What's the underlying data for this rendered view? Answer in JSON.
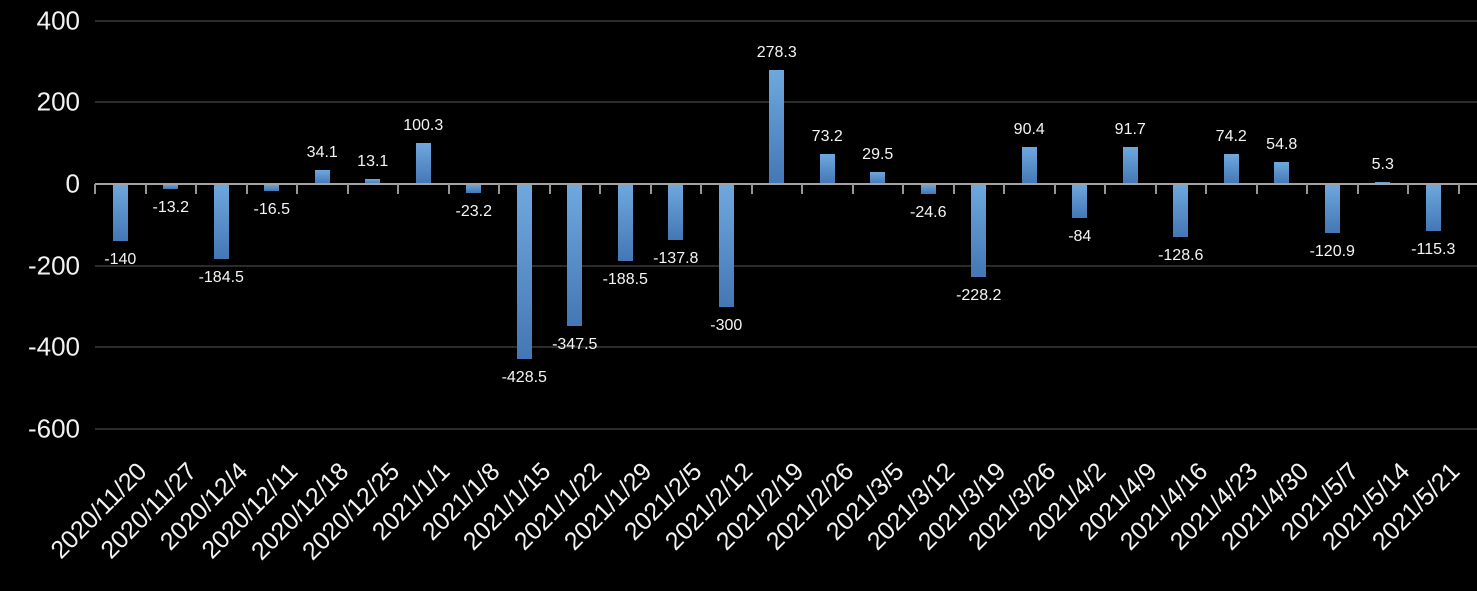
{
  "chart_data": {
    "type": "bar",
    "title": "",
    "xlabel": "",
    "ylabel": "",
    "categories": [
      "2020/11/20",
      "2020/11/27",
      "2020/12/4",
      "2020/12/11",
      "2020/12/18",
      "2020/12/25",
      "2021/1/1",
      "2021/1/8",
      "2021/1/15",
      "2021/1/22",
      "2021/1/29",
      "2021/2/5",
      "2021/2/12",
      "2021/2/19",
      "2021/2/26",
      "2021/3/5",
      "2021/3/12",
      "2021/3/19",
      "2021/3/26",
      "2021/4/2",
      "2021/4/9",
      "2021/4/16",
      "2021/4/23",
      "2021/4/30",
      "2021/5/7",
      "2021/5/14",
      "2021/5/21"
    ],
    "values": [
      -140,
      -13.2,
      -184.5,
      -16.5,
      34.1,
      13.1,
      100.3,
      -23.2,
      -428.5,
      -347.5,
      -188.5,
      -137.8,
      -300,
      278.3,
      73.2,
      29.5,
      -24.6,
      -228.2,
      90.4,
      -84,
      91.7,
      -128.6,
      74.2,
      54.8,
      -120.9,
      5.3,
      -115.3
    ],
    "yticks": [
      400,
      200,
      0,
      -200,
      -400,
      -600
    ],
    "ylim": [
      -600,
      400
    ],
    "grid": "horizontal",
    "legend": "none",
    "data_labels": "outside-end",
    "x_label_rotation_deg": 45,
    "colors": {
      "background": "#000000",
      "bar_gradient_top": "#6fa8de",
      "bar_gradient_bottom": "#4377b5",
      "axis_line": "#a3a3a3",
      "tick": "#969696",
      "gridline": "#2b2b2b",
      "axis_label_text": "#f2f2f2",
      "value_label_text": "#f5f5f5"
    }
  }
}
